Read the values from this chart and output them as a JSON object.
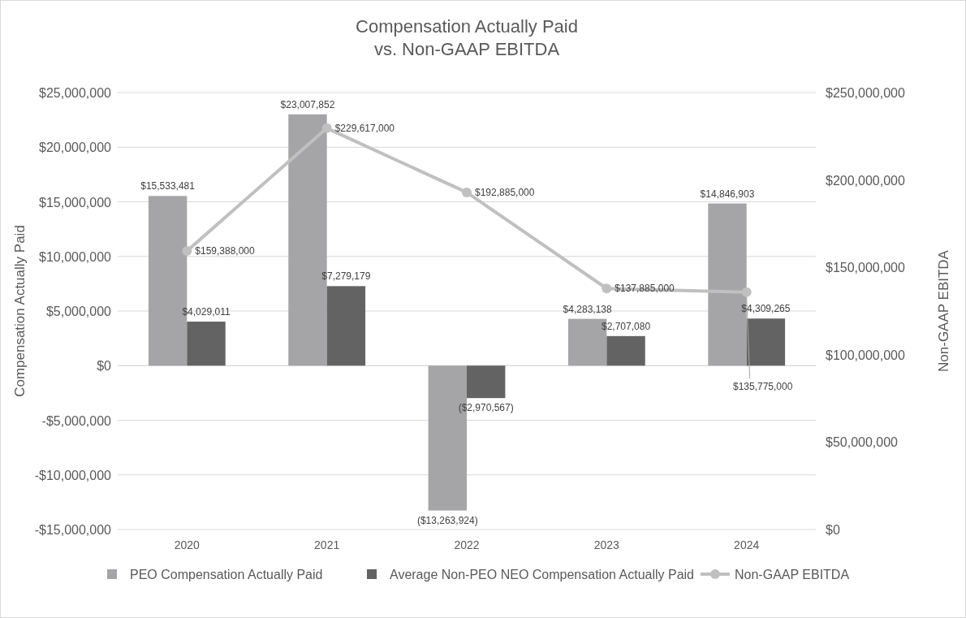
{
  "chart_data": {
    "type": "bar",
    "title": "Compensation Actually Paid\nvs. Non-GAAP EBITDA",
    "ylabel": "Compensation Actually Paid",
    "y2label": "Non-GAAP EBITDA",
    "categories": [
      "2020",
      "2021",
      "2022",
      "2023",
      "2024"
    ],
    "series": [
      {
        "name": "PEO Compensation Actually Paid",
        "color": "#a5a5a7",
        "values": [
          15533481,
          23007852,
          -13263924,
          4283138,
          14846903
        ],
        "value_labels": [
          "$15,533,481",
          "$23,007,852",
          "($13,263,924)",
          "$4,283,138",
          "$14,846,903"
        ]
      },
      {
        "name": "Average Non-PEO NEO Compensation Actually Paid",
        "color": "#636363",
        "values": [
          4029011,
          7279179,
          -2970567,
          2707080,
          4309265
        ],
        "value_labels": [
          "$4,029,011",
          "$7,279,179",
          "($2,970,567)",
          "$2,707,080",
          "$4,309,265"
        ]
      },
      {
        "name": "Non-GAAP EBITDA",
        "type": "line",
        "axis": "y2",
        "color": "#c0c0c0",
        "marker": "circle",
        "values": [
          159388000,
          229617000,
          192885000,
          137885000,
          135775000
        ],
        "value_labels": [
          "$159,388,000",
          "$229,617,000",
          "$192,885,000",
          "$137,885,000",
          "$135,775,000"
        ]
      }
    ],
    "ylim": [
      -15000000,
      25000000
    ],
    "yticks": [
      {
        "value": -15000000,
        "label": "-$15,000,000"
      },
      {
        "value": -10000000,
        "label": "-$10,000,000"
      },
      {
        "value": -5000000,
        "label": "-$5,000,000"
      },
      {
        "value": 0,
        "label": "$0"
      },
      {
        "value": 5000000,
        "label": "$5,000,000"
      },
      {
        "value": 10000000,
        "label": "$10,000,000"
      },
      {
        "value": 15000000,
        "label": "$15,000,000"
      },
      {
        "value": 20000000,
        "label": "$20,000,000"
      },
      {
        "value": 25000000,
        "label": "$25,000,000"
      }
    ],
    "y2lim": [
      0,
      250000000
    ],
    "y2ticks": [
      {
        "value": 0,
        "label": "$0"
      },
      {
        "value": 50000000,
        "label": "$50,000,000"
      },
      {
        "value": 100000000,
        "label": "$100,000,000"
      },
      {
        "value": 150000000,
        "label": "$150,000,000"
      },
      {
        "value": 200000000,
        "label": "$200,000,000"
      },
      {
        "value": 250000000,
        "label": "$250,000,000"
      }
    ],
    "grid": "y",
    "legend": "bottom"
  }
}
